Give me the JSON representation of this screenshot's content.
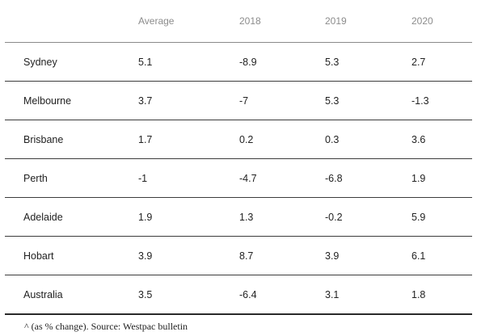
{
  "chart_data": {
    "type": "table",
    "columns": [
      "",
      "Average",
      "2018",
      "2019",
      "2020"
    ],
    "rows": [
      {
        "city": "Sydney",
        "values": [
          "5.1",
          "-8.9",
          "5.3",
          "2.7"
        ]
      },
      {
        "city": "Melbourne",
        "values": [
          "3.7",
          "-7",
          "5.3",
          "-1.3"
        ]
      },
      {
        "city": "Brisbane",
        "values": [
          "1.7",
          "0.2",
          "0.3",
          "3.6"
        ]
      },
      {
        "city": "Perth",
        "values": [
          "-1",
          "-4.7",
          "-6.8",
          "1.9"
        ]
      },
      {
        "city": "Adelaide",
        "values": [
          "1.9",
          "1.3",
          "-0.2",
          "5.9"
        ]
      },
      {
        "city": "Hobart",
        "values": [
          "3.9",
          "8.7",
          "3.9",
          "6.1"
        ]
      },
      {
        "city": "Australia",
        "values": [
          "3.5",
          "-6.4",
          "3.1",
          "1.8"
        ]
      }
    ],
    "note": "^ (as % change). Source: Westpac bulletin"
  }
}
